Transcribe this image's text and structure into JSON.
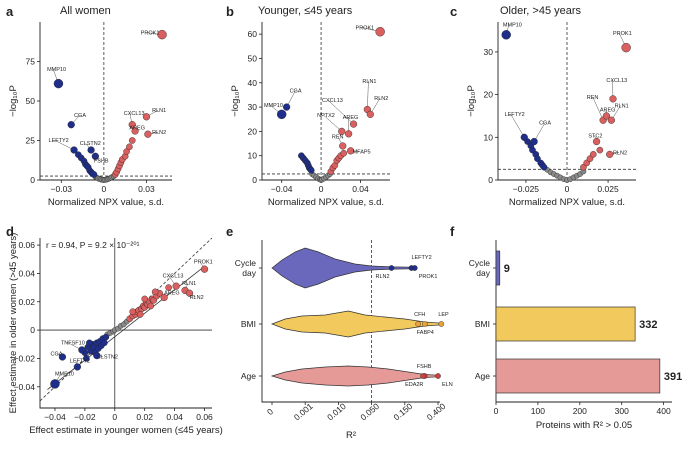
{
  "colors": {
    "blue": "#1f2e8a",
    "red": "#d9605f",
    "grey": "#8a8a8a",
    "violin_cycle": "#6a68bd",
    "violin_bmi": "#f2c95c",
    "violin_age": "#e59a98",
    "dot_orange": "#e8a33a",
    "dot_red": "#c94440"
  },
  "chart_data": [
    {
      "id": "a",
      "type": "scatter",
      "panel_letter": "a",
      "title": "All women",
      "xlabel": "Normalized NPX value, s.d.",
      "ylabel": "−log₁₀P",
      "xlim": [
        -0.045,
        0.048
      ],
      "ylim": [
        0,
        100
      ],
      "xticks": [
        -0.03,
        0,
        0.03
      ],
      "xtick_labels": [
        "−0.03",
        "0",
        "0.03"
      ],
      "yticks": [
        0,
        25,
        50,
        75
      ],
      "ref_y": 2.5,
      "labeled_points": [
        {
          "label": "PROK1",
          "x": 0.041,
          "y": 92,
          "color": "red",
          "lx": 0.026,
          "ly": 92
        },
        {
          "label": "MMP10",
          "x": -0.032,
          "y": 61,
          "color": "blue",
          "lx": -0.04,
          "ly": 69
        },
        {
          "label": "CGA",
          "x": -0.023,
          "y": 35,
          "color": "blue",
          "lx": -0.021,
          "ly": 40
        },
        {
          "label": "CXCL13",
          "x": 0.02,
          "y": 35,
          "color": "red",
          "lx": 0.014,
          "ly": 41
        },
        {
          "label": "RLN1",
          "x": 0.03,
          "y": 40,
          "color": "red",
          "lx": 0.034,
          "ly": 43
        },
        {
          "label": "AREG",
          "x": 0.022,
          "y": 31,
          "color": "red",
          "lx": 0.018,
          "ly": 32
        },
        {
          "label": "RLN2",
          "x": 0.031,
          "y": 29,
          "color": "red",
          "lx": 0.034,
          "ly": 29
        },
        {
          "label": "LEFTY2",
          "x": -0.021,
          "y": 19,
          "color": "blue",
          "lx": -0.039,
          "ly": 24
        },
        {
          "label": "CLSTN2",
          "x": -0.009,
          "y": 19,
          "color": "blue",
          "lx": -0.017,
          "ly": 22
        },
        {
          "label": "FSHB",
          "x": -0.006,
          "y": 15,
          "color": "blue",
          "lx": -0.007,
          "ly": 11
        }
      ],
      "points_blue": [
        [
          -0.018,
          16
        ],
        [
          -0.016,
          14
        ],
        [
          -0.014,
          12
        ],
        [
          -0.013,
          10
        ],
        [
          -0.012,
          9
        ],
        [
          -0.011,
          8
        ],
        [
          -0.01,
          6
        ],
        [
          -0.009,
          5
        ],
        [
          -0.008,
          4
        ],
        [
          -0.007,
          3.5
        ]
      ],
      "points_red": [
        [
          0.008,
          3.5
        ],
        [
          0.009,
          5
        ],
        [
          0.01,
          7
        ],
        [
          0.011,
          9
        ],
        [
          0.012,
          11
        ],
        [
          0.013,
          13
        ],
        [
          0.015,
          15
        ],
        [
          0.016,
          18
        ],
        [
          0.018,
          21
        ],
        [
          0.02,
          25
        ]
      ],
      "points_grey": [
        [
          -0.006,
          2
        ],
        [
          -0.005,
          1.5
        ],
        [
          -0.004,
          1
        ],
        [
          -0.003,
          0.6
        ],
        [
          -0.002,
          0.3
        ],
        [
          -0.001,
          0.1
        ],
        [
          0,
          0
        ],
        [
          0.001,
          0.1
        ],
        [
          0.002,
          0.3
        ],
        [
          0.003,
          0.6
        ],
        [
          0.004,
          1
        ],
        [
          0.005,
          1.5
        ],
        [
          0.006,
          2
        ],
        [
          0.007,
          2.4
        ]
      ]
    },
    {
      "id": "b",
      "type": "scatter",
      "panel_letter": "b",
      "title": "Younger, ≤45 years",
      "xlabel": "Normalized NPX value, s.d.",
      "ylabel": "−log₁₀P",
      "xlim": [
        -0.06,
        0.07
      ],
      "ylim": [
        0,
        65
      ],
      "xticks": [
        -0.04,
        0,
        0.04
      ],
      "xtick_labels": [
        "−0.04",
        "0",
        "0.04"
      ],
      "yticks": [
        0,
        10,
        20,
        30,
        40,
        50,
        60
      ],
      "ref_y": 2.5,
      "labeled_points": [
        {
          "label": "PROK1",
          "x": 0.06,
          "y": 61,
          "color": "red",
          "lx": 0.035,
          "ly": 62
        },
        {
          "label": "MMP10",
          "x": -0.04,
          "y": 27,
          "color": "blue",
          "lx": -0.058,
          "ly": 30
        },
        {
          "label": "CGA",
          "x": -0.035,
          "y": 30,
          "color": "blue",
          "lx": -0.032,
          "ly": 36
        },
        {
          "label": "RLN1",
          "x": 0.047,
          "y": 29,
          "color": "red",
          "lx": 0.042,
          "ly": 40
        },
        {
          "label": "RLN2",
          "x": 0.05,
          "y": 27,
          "color": "red",
          "lx": 0.054,
          "ly": 33
        },
        {
          "label": "CXCL13",
          "x": 0.033,
          "y": 23,
          "color": "red",
          "lx": 0.001,
          "ly": 32
        },
        {
          "label": "NPTX2",
          "x": 0.021,
          "y": 20,
          "color": "red",
          "lx": -0.004,
          "ly": 26
        },
        {
          "label": "AREG",
          "x": 0.028,
          "y": 19,
          "color": "red",
          "lx": 0.022,
          "ly": 25
        },
        {
          "label": "REN",
          "x": 0.022,
          "y": 14,
          "color": "red",
          "lx": 0.011,
          "ly": 17
        },
        {
          "label": "MFAP5",
          "x": 0.03,
          "y": 12,
          "color": "red",
          "lx": 0.032,
          "ly": 11
        }
      ],
      "points_blue": [
        [
          -0.02,
          10
        ],
        [
          -0.018,
          9
        ],
        [
          -0.016,
          8
        ],
        [
          -0.014,
          7
        ],
        [
          -0.013,
          6
        ],
        [
          -0.012,
          5
        ],
        [
          -0.011,
          4.5
        ],
        [
          -0.01,
          4
        ]
      ],
      "points_red": [
        [
          0.01,
          3.5
        ],
        [
          0.012,
          5
        ],
        [
          0.014,
          6
        ],
        [
          0.016,
          8
        ],
        [
          0.018,
          9
        ],
        [
          0.02,
          10
        ],
        [
          0.023,
          11
        ]
      ],
      "points_grey": [
        [
          -0.009,
          2.4
        ],
        [
          -0.007,
          1.8
        ],
        [
          -0.005,
          1.2
        ],
        [
          -0.003,
          0.6
        ],
        [
          -0.001,
          0.2
        ],
        [
          0,
          0
        ],
        [
          0.001,
          0.2
        ],
        [
          0.003,
          0.6
        ],
        [
          0.005,
          1.2
        ],
        [
          0.007,
          1.8
        ],
        [
          0.009,
          2.4
        ]
      ]
    },
    {
      "id": "c",
      "type": "scatter",
      "panel_letter": "c",
      "title": "Older, >45 years",
      "xlabel": "Normalized NPX value, s.d.",
      "ylabel": "−log₁₀P",
      "xlim": [
        -0.042,
        0.042
      ],
      "ylim": [
        0,
        37
      ],
      "xticks": [
        -0.025,
        0,
        0.025
      ],
      "xtick_labels": [
        "−0.025",
        "0",
        "0.025"
      ],
      "yticks": [
        0,
        10,
        20,
        30
      ],
      "ref_y": 2.5,
      "labeled_points": [
        {
          "label": "MMP10",
          "x": -0.037,
          "y": 34,
          "color": "blue",
          "lx": -0.039,
          "ly": 36
        },
        {
          "label": "PROK1",
          "x": 0.036,
          "y": 31,
          "color": "red",
          "lx": 0.028,
          "ly": 34
        },
        {
          "label": "CXCL13",
          "x": 0.028,
          "y": 19,
          "color": "red",
          "lx": 0.024,
          "ly": 23
        },
        {
          "label": "REN",
          "x": 0.022,
          "y": 14,
          "color": "red",
          "lx": 0.012,
          "ly": 19
        },
        {
          "label": "AREG",
          "x": 0.024,
          "y": 15,
          "color": "red",
          "lx": 0.02,
          "ly": 16
        },
        {
          "label": "RLN1",
          "x": 0.027,
          "y": 14,
          "color": "red",
          "lx": 0.029,
          "ly": 17
        },
        {
          "label": "LEFTY2",
          "x": -0.026,
          "y": 10,
          "color": "blue",
          "lx": -0.038,
          "ly": 15
        },
        {
          "label": "CGA",
          "x": -0.02,
          "y": 9,
          "color": "blue",
          "lx": -0.017,
          "ly": 13
        },
        {
          "label": "STC2",
          "x": 0.018,
          "y": 9,
          "color": "red",
          "lx": 0.013,
          "ly": 10
        },
        {
          "label": "RLN2",
          "x": 0.026,
          "y": 6,
          "color": "red",
          "lx": 0.028,
          "ly": 6
        }
      ],
      "points_blue": [
        [
          -0.024,
          9
        ],
        [
          -0.022,
          8
        ],
        [
          -0.021,
          7
        ],
        [
          -0.019,
          6
        ],
        [
          -0.018,
          5
        ],
        [
          -0.016,
          4
        ],
        [
          -0.015,
          3.5
        ],
        [
          -0.014,
          3
        ]
      ],
      "points_red": [
        [
          0.01,
          3
        ],
        [
          0.012,
          4
        ],
        [
          0.014,
          5
        ],
        [
          0.016,
          6
        ],
        [
          0.02,
          7
        ]
      ],
      "points_grey": [
        [
          -0.012,
          2.4
        ],
        [
          -0.01,
          1.8
        ],
        [
          -0.008,
          1.4
        ],
        [
          -0.006,
          1
        ],
        [
          -0.004,
          0.6
        ],
        [
          -0.002,
          0.2
        ],
        [
          0,
          0
        ],
        [
          0.002,
          0.2
        ],
        [
          0.004,
          0.6
        ],
        [
          0.006,
          1
        ],
        [
          0.008,
          1.4
        ],
        [
          0.01,
          2
        ]
      ]
    },
    {
      "id": "d",
      "type": "scatter",
      "panel_letter": "d",
      "annotation": "r = 0.94, P = 9.2 × 10⁻²⁰¹",
      "xlabel": "Effect estimate in younger women (≤45 years)",
      "ylabel": "Effect estimate in older women (>45 years)",
      "xlim": [
        -0.05,
        0.065
      ],
      "ylim": [
        -0.055,
        0.065
      ],
      "xticks": [
        -0.04,
        -0.02,
        0,
        0.02,
        0.04,
        0.06
      ],
      "xtick_labels": [
        "−0.04",
        "−0.02",
        "0",
        "0.02",
        "0.04",
        "0.06"
      ],
      "yticks": [
        -0.04,
        -0.02,
        0,
        0.02,
        0.04,
        0.06
      ],
      "ytick_labels": [
        "−0.04",
        "−0.02",
        "0",
        "0.02",
        "0.04",
        "0.06"
      ],
      "labeled_points": [
        {
          "label": "PROK1",
          "x": 0.06,
          "y": 0.043,
          "color": "red",
          "lx": 0.053,
          "ly": 0.047
        },
        {
          "label": "CXCL13",
          "x": 0.041,
          "y": 0.031,
          "color": "red",
          "lx": 0.032,
          "ly": 0.037
        },
        {
          "label": "RLN1",
          "x": 0.047,
          "y": 0.028,
          "color": "red",
          "lx": 0.045,
          "ly": 0.032
        },
        {
          "label": "AREG",
          "x": 0.033,
          "y": 0.023,
          "color": "red",
          "lx": 0.033,
          "ly": 0.025
        },
        {
          "label": "RLN2",
          "x": 0.05,
          "y": 0.026,
          "color": "red",
          "lx": 0.05,
          "ly": 0.022
        },
        {
          "label": "TNFSF10",
          "x": -0.022,
          "y": -0.014,
          "color": "blue",
          "lx": -0.036,
          "ly": -0.01
        },
        {
          "label": "CGA",
          "x": -0.035,
          "y": -0.019,
          "color": "blue",
          "lx": -0.043,
          "ly": -0.018
        },
        {
          "label": "LEFTY2",
          "x": -0.025,
          "y": -0.026,
          "color": "blue",
          "lx": -0.03,
          "ly": -0.023
        },
        {
          "label": "CLSTN2",
          "x": -0.012,
          "y": -0.018,
          "color": "blue",
          "lx": -0.012,
          "ly": -0.02
        },
        {
          "label": "MMP10",
          "x": -0.04,
          "y": -0.038,
          "color": "blue",
          "lx": -0.04,
          "ly": -0.032
        }
      ],
      "points_blue": [
        [
          -0.018,
          -0.012
        ],
        [
          -0.016,
          -0.015
        ],
        [
          -0.015,
          -0.01
        ],
        [
          -0.014,
          -0.012
        ],
        [
          -0.013,
          -0.016
        ],
        [
          -0.012,
          -0.009
        ],
        [
          -0.011,
          -0.013
        ],
        [
          -0.01,
          -0.008
        ],
        [
          -0.009,
          -0.011
        ],
        [
          -0.008,
          -0.006
        ],
        [
          -0.02,
          -0.016
        ],
        [
          -0.017,
          -0.009
        ],
        [
          -0.007,
          -0.009
        ],
        [
          -0.006,
          -0.005
        ],
        [
          -0.019,
          -0.02
        ]
      ],
      "points_red": [
        [
          0.01,
          0.008
        ],
        [
          0.012,
          0.01
        ],
        [
          0.014,
          0.011
        ],
        [
          0.015,
          0.013
        ],
        [
          0.016,
          0.014
        ],
        [
          0.018,
          0.015
        ],
        [
          0.019,
          0.017
        ],
        [
          0.02,
          0.016
        ],
        [
          0.021,
          0.019
        ],
        [
          0.022,
          0.018
        ],
        [
          0.023,
          0.02
        ],
        [
          0.025,
          0.022
        ],
        [
          0.026,
          0.021
        ],
        [
          0.028,
          0.024
        ],
        [
          0.03,
          0.026
        ],
        [
          0.012,
          0.013
        ],
        [
          0.017,
          0.011
        ],
        [
          0.02,
          0.022
        ],
        [
          0.024,
          0.017
        ],
        [
          0.027,
          0.027
        ],
        [
          0.036,
          0.03
        ]
      ],
      "points_grey": [
        [
          -0.005,
          -0.003
        ],
        [
          -0.003,
          -0.002
        ],
        [
          -0.001,
          -0.001
        ],
        [
          0,
          0
        ],
        [
          0.002,
          0.001
        ],
        [
          0.004,
          0.003
        ],
        [
          0.006,
          0.004
        ],
        [
          0.008,
          0.006
        ]
      ]
    },
    {
      "id": "e",
      "type": "violin",
      "panel_letter": "e",
      "xlabel": "R²",
      "categories": [
        "Cycle day",
        "BMI",
        "Age"
      ],
      "xticks": [
        "0",
        "0.001",
        "0.010",
        "0.050",
        "0.150",
        "0.400"
      ],
      "ref_x": "0.050",
      "labels": [
        {
          "row": 0,
          "label": "LEFTY2",
          "pos": 4.2
        },
        {
          "row": 0,
          "label": "RLN2",
          "pos": 3.6
        },
        {
          "row": 0,
          "label": "PROK1",
          "pos": 4.3
        },
        {
          "row": 1,
          "label": "CFH",
          "pos": 4.4
        },
        {
          "row": 1,
          "label": "LEP",
          "pos": 5.1
        },
        {
          "row": 1,
          "label": "FABP4",
          "pos": 4.6
        },
        {
          "row": 2,
          "label": "FSHB",
          "pos": 4.6
        },
        {
          "row": 2,
          "label": "EDA2R",
          "pos": 4.55
        },
        {
          "row": 2,
          "label": "ELN",
          "pos": 5.0
        }
      ]
    },
    {
      "id": "f",
      "type": "bar",
      "panel_letter": "f",
      "orientation": "horizontal",
      "categories": [
        "Cycle day",
        "BMI",
        "Age"
      ],
      "values": [
        9,
        332,
        391
      ],
      "xlabel": "Proteins with R² > 0.05",
      "xlim": [
        0,
        420
      ],
      "xticks": [
        0,
        100,
        200,
        300,
        400
      ]
    }
  ]
}
